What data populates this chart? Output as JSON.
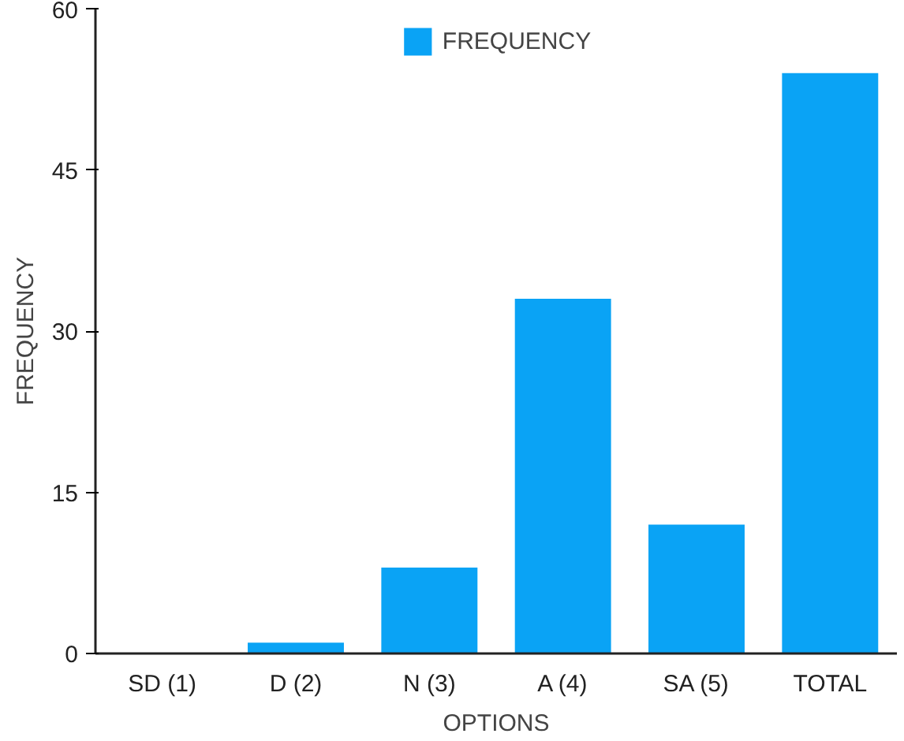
{
  "chart_data": {
    "type": "bar",
    "xlabel": "OPTIONS",
    "ylabel": "FREQUENCY",
    "categories": [
      "SD (1)",
      "D (2)",
      "N (3)",
      "A (4)",
      "SA (5)",
      "TOTAL"
    ],
    "series": [
      {
        "name": "FREQUENCY",
        "color": "#0aa3f5",
        "values": [
          0,
          1,
          8,
          33,
          12,
          54
        ]
      }
    ],
    "ylim": [
      0,
      60
    ],
    "yticks": [
      0,
      15,
      30,
      45,
      60
    ],
    "grid": false,
    "legend": "top"
  }
}
